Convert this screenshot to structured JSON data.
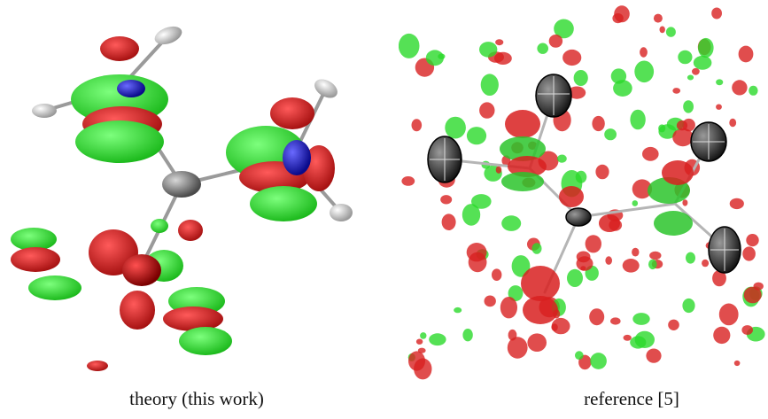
{
  "captions": {
    "left": "theory (this work)",
    "right": "reference [5]"
  },
  "colors": {
    "positive_lobe": "#2bd92b",
    "negative_lobe": "#d82020",
    "carbon": "#7a7a7a",
    "nitrogen": "#1a1ad6",
    "oxygen": "#cc1010",
    "hydrogen": "#d8d8d8",
    "ellipsoid_dark": "#2b2b2b"
  },
  "panels": {
    "left": "molecular-density-isosurface-theory",
    "right": "molecular-density-isosurface-reference"
  }
}
